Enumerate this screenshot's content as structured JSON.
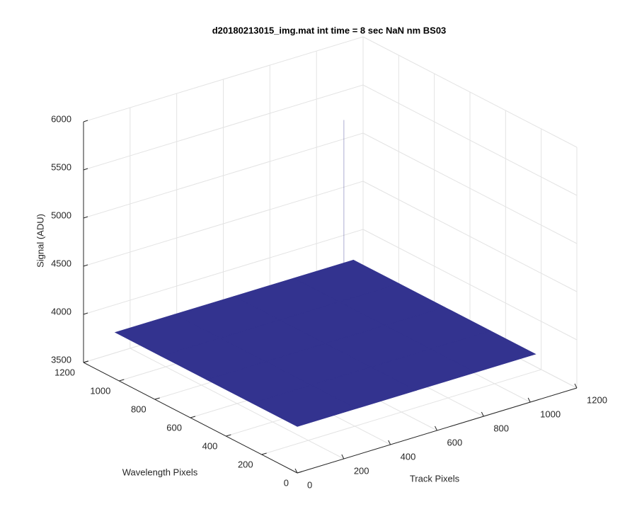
{
  "chart_data": {
    "type": "surface",
    "title": "d20180213015_img.mat int time = 8 sec  NaN nm BS03",
    "x_label": "Track Pixels",
    "y_label": "Wavelength Pixels",
    "z_label": "Signal (ADU)",
    "xlim": [
      0,
      1200
    ],
    "xticks": [
      0,
      200,
      400,
      600,
      800,
      1000,
      1200
    ],
    "ylim": [
      0,
      1200
    ],
    "yticks": [
      0,
      200,
      400,
      600,
      800,
      1000,
      1200
    ],
    "zlim": [
      3500,
      6000
    ],
    "zticks": [
      3500,
      4000,
      4500,
      5000,
      5500,
      6000
    ],
    "grid": true,
    "color": "#33338f",
    "x": [
      1,
      256,
      512,
      768,
      1024
    ],
    "y": [
      1,
      256,
      512,
      768,
      1024
    ],
    "z": [
      [
        3980,
        3980,
        3980,
        3980,
        3980
      ],
      [
        3980,
        3980,
        3980,
        3980,
        3980
      ],
      [
        3980,
        3980,
        3980,
        3980,
        3980
      ],
      [
        3980,
        3980,
        3980,
        3980,
        3980
      ],
      [
        3980,
        3980,
        3980,
        3980,
        3980
      ]
    ],
    "peak": {
      "x": 980,
      "y": 1020,
      "z": 5470
    }
  }
}
